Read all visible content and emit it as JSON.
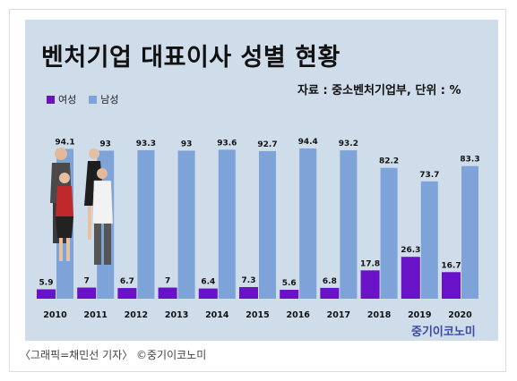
{
  "header": {
    "title": "벤처기업 대표이사 성별 현황",
    "source": "자료 : 중소벤처기업부, 단위 : %"
  },
  "brand": "중기이코노미",
  "caption": "〈그래픽=채민선 기자〉  ©중기이코노미",
  "colors": {
    "female": "#6a12c8",
    "male": "#7ea3d8",
    "background": "#cfdcea"
  },
  "chart_data": {
    "type": "bar",
    "title": "벤처기업 대표이사 성별 현황",
    "categories": [
      "2010",
      "2011",
      "2012",
      "2013",
      "2014",
      "2015",
      "2016",
      "2017",
      "2018",
      "2019",
      "2020"
    ],
    "series": [
      {
        "name": "여성",
        "values": [
          5.9,
          7,
          6.7,
          7,
          6.4,
          7.3,
          5.6,
          6.8,
          17.8,
          26.3,
          16.7
        ]
      },
      {
        "name": "남성",
        "values": [
          94.1,
          93,
          93.3,
          93,
          93.6,
          92.7,
          94.4,
          93.2,
          82.2,
          73.7,
          83.3
        ]
      }
    ],
    "ylim": [
      0,
      100
    ],
    "grid": false,
    "legend_position": "top-left"
  }
}
